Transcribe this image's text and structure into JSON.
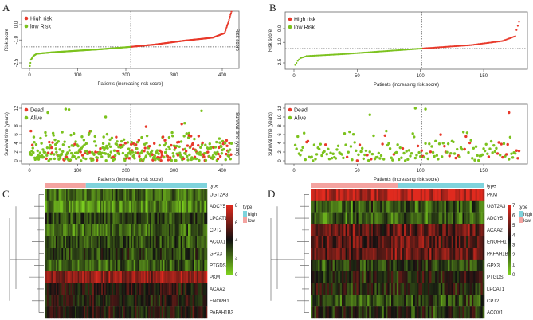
{
  "panels": {
    "A": "A",
    "B": "B",
    "C": "C",
    "D": "D"
  },
  "legend": {
    "high_risk": "High risk",
    "low_risk": "low Risk",
    "dead": "Dead",
    "alive": "Alive"
  },
  "colors": {
    "high": "#e8392a",
    "low": "#7cc21e",
    "type_high": "#7fd3dc",
    "type_low": "#f4a3a0",
    "heat_low": "#7ed21e",
    "heat_mid": "#111111",
    "heat_high": "#e02a1e"
  },
  "chart_data": [
    {
      "type": "scatter",
      "panel": "A-top",
      "xlabel": "Patients (increasing risk socre)",
      "ylabel": "Risk score",
      "ylabel_right": "Risk score",
      "xticks": [
        "0",
        "100",
        "200",
        "300",
        "400"
      ],
      "yticks": [
        "0.0",
        "-1.0",
        "-2.5"
      ],
      "xlim": [
        0,
        420
      ],
      "ylim": [
        -2.7,
        0.9
      ],
      "n": 419,
      "cutoff_index": 210,
      "cutoff_value": -1.45,
      "curve": [
        [
          1,
          -2.7
        ],
        [
          3,
          -2.3
        ],
        [
          8,
          -2.05
        ],
        [
          15,
          -1.9
        ],
        [
          50,
          -1.8
        ],
        [
          100,
          -1.7
        ],
        [
          150,
          -1.6
        ],
        [
          210,
          -1.45
        ],
        [
          260,
          -1.3
        ],
        [
          320,
          -1.05
        ],
        [
          380,
          -0.85
        ],
        [
          405,
          -0.55
        ],
        [
          412,
          0.1
        ],
        [
          419,
          0.85
        ]
      ]
    },
    {
      "type": "scatter",
      "panel": "A-bottom",
      "xlabel": "Patients (increasing risk socre)",
      "ylabel": "Survival time (years)",
      "ylabel_right": "Survival time (years)",
      "xticks": [
        "0",
        "100",
        "200",
        "300",
        "400"
      ],
      "yticks": [
        "0",
        "2",
        "4",
        "6",
        "8",
        "12"
      ],
      "xlim": [
        0,
        420
      ],
      "ylim": [
        0,
        12
      ],
      "n": 419,
      "cutoff_index": 210,
      "notable": [
        [
          3,
          6.8,
          "dead"
        ],
        [
          38,
          11,
          "alive"
        ],
        [
          75,
          11.8,
          "alive"
        ],
        [
          82,
          11.7,
          "alive"
        ],
        [
          158,
          10,
          "alive"
        ],
        [
          242,
          7.8,
          "dead"
        ],
        [
          316,
          8.4,
          "dead"
        ],
        [
          322,
          8.6,
          "alive"
        ],
        [
          357,
          11.4,
          "alive"
        ],
        [
          331,
          5.8,
          "dead"
        ]
      ]
    },
    {
      "type": "scatter",
      "panel": "B-top",
      "xlabel": "Patients (increasing risk socre)",
      "ylabel": "Risk score",
      "xticks": [
        "0",
        "50",
        "100",
        "150"
      ],
      "yticks": [
        "0.0",
        "-1.0",
        "-2.5"
      ],
      "xlim": [
        0,
        180
      ],
      "ylim": [
        -2.7,
        0.9
      ],
      "n": 178,
      "cutoff_index": 101,
      "cutoff_value": -1.45,
      "curve": [
        [
          1,
          -2.65
        ],
        [
          3,
          -2.35
        ],
        [
          5,
          -2.15
        ],
        [
          10,
          -2.0
        ],
        [
          40,
          -1.85
        ],
        [
          101,
          -1.45
        ],
        [
          140,
          -1.2
        ],
        [
          165,
          -0.9
        ],
        [
          175,
          -0.55
        ],
        [
          176,
          -0.1
        ],
        [
          178,
          0.5
        ]
      ]
    },
    {
      "type": "scatter",
      "panel": "B-bottom",
      "xlabel": "Patients (increasing risk socre)",
      "ylabel": "Survival time (years)",
      "xticks": [
        "0",
        "50",
        "100",
        "150"
      ],
      "yticks": [
        "0",
        "2",
        "4",
        "6",
        "8",
        "10",
        "12"
      ],
      "xlim": [
        0,
        180
      ],
      "ylim": [
        0,
        12
      ],
      "n": 178,
      "cutoff_index": 101,
      "notable": [
        [
          96,
          12,
          "alive"
        ],
        [
          104,
          11.8,
          "alive"
        ],
        [
          170,
          11,
          "dead"
        ],
        [
          60,
          10.5,
          "alive"
        ]
      ]
    },
    {
      "type": "heatmap",
      "panel": "C",
      "legend_title": "type",
      "legend_items": [
        "high",
        "low"
      ],
      "key_ticks": [
        "0",
        "2",
        "4",
        "6",
        "8"
      ],
      "key_range": [
        0,
        8
      ],
      "columns": 110,
      "low_fraction": 0.25,
      "genes": [
        "UGT2A3",
        "ADCY5",
        "LPCAT1",
        "CPT2",
        "ACOX1",
        "GPX3",
        "PTGDS",
        "PKM",
        "ACAA2",
        "ENOPH1",
        "PAFAH1B3"
      ],
      "gene_means": [
        2.2,
        1.5,
        3.0,
        2.2,
        2.6,
        3.2,
        2.3,
        6.5,
        4.3,
        4.0,
        4.2
      ],
      "type_label": "type"
    },
    {
      "type": "heatmap",
      "panel": "D",
      "legend_title": "type",
      "legend_items": [
        "high",
        "low"
      ],
      "key_ticks": [
        "0",
        "1",
        "2",
        "3",
        "4",
        "5",
        "6",
        "7"
      ],
      "key_range": [
        0,
        7
      ],
      "columns": 95,
      "low_fraction": 0.5,
      "genes": [
        "PKM",
        "UGT2A3",
        "ADCY5",
        "ACAA2",
        "ENOPH1",
        "PAFAH1B3",
        "GPX3",
        "PTGDS",
        "LPCAT1",
        "CPT2",
        "ACOX1"
      ],
      "gene_means": [
        6.6,
        2.2,
        2.0,
        4.8,
        4.7,
        5.0,
        2.8,
        3.4,
        3.4,
        2.6,
        3.1
      ],
      "type_label": "type"
    }
  ]
}
